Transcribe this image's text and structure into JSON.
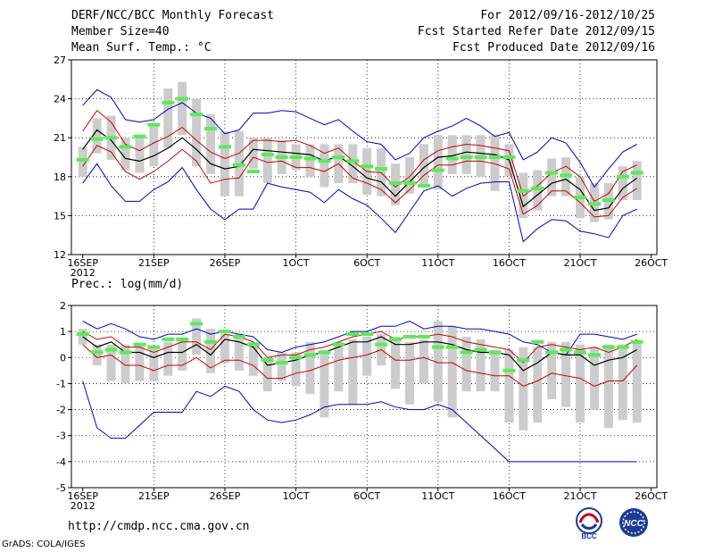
{
  "header": {
    "title": "DERF/NCC/BCC Monthly Forecast",
    "member": "Member Size=40",
    "variable": "Mean Surf. Temp.: °C",
    "period": "For 2012/09/16-2012/10/25",
    "started": "Fcst Started Refer Date 2012/09/15",
    "produced": "Fcst Produced Date 2012/09/16"
  },
  "precip_label": "Prec.: log(mm/d)",
  "footer": {
    "url": "http://cmdp.ncc.cma.gov.cn",
    "credit": "GrADS: COLA/IGES"
  },
  "logos": {
    "left_text": "BCC",
    "right_text": "NCC"
  },
  "colors": {
    "mean": "#000000",
    "spread": "#cc0000",
    "envelope": "#0000cc",
    "box": "#cccccc",
    "marker": "#55ee55"
  },
  "chart_data": [
    {
      "type": "line",
      "title": "Mean Surf. Temp.: °C",
      "ylim": [
        12,
        27
      ],
      "yticks": [
        12,
        15,
        18,
        21,
        24,
        27
      ],
      "xtick_labels": [
        {
          "day": 1,
          "label": "16SEP"
        },
        {
          "day": 6,
          "label": "21SEP"
        },
        {
          "day": 11,
          "label": "26SEP"
        },
        {
          "day": 16,
          "label": "1OCT"
        },
        {
          "day": 21,
          "label": "6OCT"
        },
        {
          "day": 26,
          "label": "11OCT"
        },
        {
          "day": 31,
          "label": "16OCT"
        },
        {
          "day": 36,
          "label": "21OCT"
        },
        {
          "day": 41,
          "label": "26OCT"
        }
      ],
      "year_label": "2012",
      "series": [
        {
          "name": "max",
          "values": [
            23.5,
            24.7,
            24.1,
            22.4,
            22.2,
            22.4,
            23.2,
            23.7,
            22.9,
            22.5,
            21.3,
            21.6,
            22.9,
            22.9,
            23.1,
            23.0,
            22.5,
            22.0,
            22.4,
            21.5,
            20.7,
            20.5,
            19.3,
            19.8,
            21.0,
            21.5,
            21.9,
            22.5,
            21.9,
            21.1,
            21.4,
            19.3,
            19.9,
            21.0,
            20.6,
            19.1,
            17.2,
            18.6,
            19.9,
            20.5
          ]
        },
        {
          "name": "upper",
          "values": [
            21.5,
            23.1,
            22.2,
            20.5,
            20.0,
            20.6,
            21.1,
            21.8,
            20.8,
            19.9,
            19.4,
            19.8,
            20.8,
            20.8,
            20.7,
            20.8,
            20.4,
            19.8,
            20.2,
            19.2,
            18.4,
            18.3,
            17.2,
            18.0,
            19.3,
            20.0,
            20.3,
            20.5,
            20.4,
            20.2,
            20.0,
            16.5,
            17.3,
            18.3,
            18.8,
            18.0,
            16.1,
            16.7,
            18.4,
            18.9
          ]
        },
        {
          "name": "mean",
          "values": [
            20.1,
            21.6,
            20.8,
            19.4,
            19.2,
            19.6,
            20.2,
            21.0,
            20.1,
            19.0,
            18.6,
            18.8,
            20.1,
            20.0,
            19.9,
            19.8,
            19.7,
            19.2,
            19.6,
            18.8,
            17.9,
            17.6,
            16.5,
            17.6,
            18.7,
            19.5,
            19.6,
            19.9,
            19.8,
            19.7,
            19.3,
            15.7,
            16.6,
            17.5,
            17.8,
            17.0,
            15.4,
            15.6,
            17.1,
            17.9
          ]
        },
        {
          "name": "lower",
          "values": [
            18.8,
            20.4,
            19.9,
            18.4,
            17.8,
            18.4,
            19.2,
            20.1,
            19.2,
            17.5,
            17.8,
            17.9,
            19.5,
            19.1,
            19.2,
            18.7,
            18.7,
            18.4,
            19.0,
            17.9,
            17.5,
            17.0,
            16.0,
            17.0,
            18.1,
            18.9,
            18.9,
            19.2,
            19.2,
            19.0,
            18.6,
            15.1,
            15.8,
            16.9,
            16.9,
            16.0,
            14.9,
            15.0,
            16.4,
            17.1
          ]
        },
        {
          "name": "min",
          "values": [
            17.5,
            19.0,
            17.3,
            16.1,
            16.1,
            17.0,
            17.6,
            18.7,
            17.0,
            15.5,
            14.7,
            15.5,
            15.5,
            17.5,
            17.2,
            17.0,
            16.8,
            16.0,
            17.0,
            16.3,
            15.8,
            14.8,
            13.7,
            15.3,
            16.9,
            17.3,
            16.5,
            17.1,
            17.5,
            17.6,
            17.6,
            13.0,
            14.0,
            14.7,
            14.6,
            13.8,
            13.6,
            13.3,
            15.0,
            15.5
          ]
        },
        {
          "name": "box_low",
          "values": [
            18.0,
            19.8,
            19.3,
            18.5,
            18.3,
            18.8,
            20.2,
            21.2,
            18.8,
            18.2,
            16.5,
            16.5,
            18.6,
            17.5,
            18.2,
            18.5,
            18.0,
            17.2,
            17.5,
            17.5,
            16.6,
            16.5,
            15.8,
            16.7,
            17.2,
            17.0,
            18.2,
            18.2,
            18.0,
            16.9,
            18.0,
            14.8,
            15.4,
            16.5,
            16.5,
            14.8,
            14.5,
            14.7,
            16.2,
            16.2
          ]
        },
        {
          "name": "box_high",
          "values": [
            20.3,
            22.5,
            22.7,
            21.0,
            21.0,
            22.1,
            24.8,
            25.3,
            24.0,
            22.8,
            21.5,
            21.5,
            21.0,
            21.0,
            20.8,
            20.5,
            20.5,
            20.5,
            20.5,
            20.5,
            20.2,
            20.2,
            19.0,
            19.5,
            20.5,
            21.2,
            21.2,
            21.2,
            21.2,
            21.2,
            20.5,
            18.3,
            18.5,
            19.4,
            19.5,
            18.0,
            17.5,
            17.5,
            18.8,
            19.2
          ]
        },
        {
          "name": "control",
          "values": [
            19.3,
            20.9,
            21.0,
            20.3,
            21.1,
            22.0,
            23.7,
            24.0,
            22.8,
            21.7,
            20.3,
            18.9,
            18.4,
            19.7,
            19.5,
            19.5,
            19.4,
            19.2,
            19.5,
            19.2,
            18.8,
            18.6,
            17.5,
            17.5,
            17.3,
            18.5,
            19.4,
            19.5,
            19.5,
            19.5,
            19.5,
            16.9,
            17.1,
            18.3,
            18.1,
            16.4,
            15.9,
            16.2,
            18.0,
            18.3
          ]
        }
      ]
    },
    {
      "type": "line",
      "title": "Prec.: log(mm/d)",
      "ylim": [
        -5,
        2
      ],
      "yticks": [
        -5,
        -4,
        -3,
        -2,
        -1,
        0,
        1,
        2
      ],
      "xtick_labels": [
        {
          "day": 1,
          "label": "16SEP"
        },
        {
          "day": 6,
          "label": "21SEP"
        },
        {
          "day": 11,
          "label": "26SEP"
        },
        {
          "day": 16,
          "label": "1OCT"
        },
        {
          "day": 21,
          "label": "6OCT"
        },
        {
          "day": 26,
          "label": "11OCT"
        },
        {
          "day": 31,
          "label": "16OCT"
        },
        {
          "day": 36,
          "label": "21OCT"
        },
        {
          "day": 41,
          "label": "26OCT"
        }
      ],
      "year_label": "2012",
      "series": [
        {
          "name": "max",
          "values": [
            1.4,
            1.1,
            1.3,
            1.1,
            0.8,
            0.7,
            0.9,
            0.9,
            1.1,
            0.9,
            1.0,
            0.9,
            0.8,
            0.3,
            0.2,
            0.4,
            0.5,
            0.6,
            0.8,
            1.0,
            1.0,
            1.2,
            1.2,
            1.4,
            1.1,
            1.2,
            1.2,
            1.1,
            1.1,
            1.0,
            0.9,
            0.6,
            0.5,
            0.2,
            0.1,
            0.9,
            0.9,
            0.8,
            0.7,
            0.9
          ]
        },
        {
          "name": "upper",
          "values": [
            1.0,
            0.7,
            0.8,
            0.4,
            0.4,
            0.2,
            0.4,
            0.6,
            0.6,
            0.3,
            0.9,
            0.8,
            0.6,
            0.0,
            0.1,
            0.1,
            0.3,
            0.4,
            0.6,
            0.8,
            0.9,
            1.0,
            0.7,
            0.8,
            0.8,
            0.9,
            0.8,
            0.6,
            0.5,
            0.4,
            0.3,
            -0.2,
            0.4,
            0.5,
            0.4,
            0.3,
            0.4,
            0.2,
            0.4,
            0.7
          ]
        },
        {
          "name": "mean",
          "values": [
            0.8,
            0.4,
            0.6,
            0.2,
            0.2,
            0.0,
            0.2,
            0.2,
            0.5,
            0.1,
            0.7,
            0.6,
            0.4,
            -0.3,
            -0.2,
            -0.1,
            0.1,
            0.2,
            0.4,
            0.6,
            0.6,
            0.8,
            0.5,
            0.5,
            0.6,
            0.6,
            0.5,
            0.3,
            0.2,
            0.2,
            0.1,
            -0.5,
            -0.2,
            0.2,
            0.1,
            0.1,
            -0.3,
            -0.1,
            0.0,
            0.3
          ]
        },
        {
          "name": "lower",
          "values": [
            0.5,
            0.0,
            0.1,
            -0.3,
            -0.3,
            -0.5,
            -0.3,
            -0.3,
            0.0,
            -0.4,
            -0.1,
            -0.1,
            -0.3,
            -0.8,
            -0.8,
            -0.6,
            -0.5,
            -0.3,
            -0.1,
            0.0,
            0.1,
            0.3,
            -0.1,
            -0.1,
            0.0,
            -0.2,
            -0.2,
            -0.5,
            -0.6,
            -0.7,
            -0.7,
            -1.1,
            -0.9,
            -0.6,
            -0.7,
            -0.8,
            -1.1,
            -0.9,
            -0.9,
            -0.3
          ]
        },
        {
          "name": "min",
          "values": [
            -0.9,
            -2.7,
            -3.1,
            -3.1,
            -2.6,
            -2.1,
            -2.1,
            -2.1,
            -1.3,
            -1.5,
            -1.1,
            -1.3,
            -2.0,
            -2.4,
            -2.5,
            -2.4,
            -2.2,
            -1.9,
            -1.8,
            -1.8,
            -1.8,
            -1.7,
            -1.9,
            -2.0,
            -2.0,
            -1.8,
            -2.0,
            -2.5,
            -3.0,
            -3.5,
            -4.0,
            -4.0,
            -4.0,
            -4.0,
            -4.0,
            -4.0,
            -4.0,
            -4.0,
            -4.0,
            -4.0
          ]
        },
        {
          "name": "box_low",
          "values": [
            0.5,
            -0.3,
            -0.9,
            -1.0,
            -0.9,
            -0.9,
            -0.7,
            -0.5,
            0.1,
            -0.6,
            -0.2,
            -0.5,
            -0.7,
            -1.3,
            -0.9,
            -1.1,
            -1.4,
            -2.3,
            -1.3,
            -1.8,
            -0.7,
            -0.3,
            -1.2,
            -1.8,
            -1.0,
            -1.7,
            -2.3,
            -1.3,
            -1.3,
            -1.3,
            -2.5,
            -2.8,
            -2.5,
            -1.6,
            -1.9,
            -2.5,
            -2.0,
            -2.7,
            -2.4,
            -2.5
          ]
        },
        {
          "name": "box_high",
          "values": [
            1.1,
            0.5,
            0.5,
            0.5,
            0.5,
            0.4,
            0.6,
            0.7,
            1.5,
            1.1,
            0.9,
            0.9,
            0.6,
            0.0,
            0.2,
            0.2,
            0.6,
            0.3,
            0.6,
            0.7,
            0.8,
            0.9,
            0.8,
            0.6,
            0.7,
            1.4,
            1.2,
            0.8,
            0.7,
            0.3,
            0.3,
            0.4,
            0.4,
            0.6,
            0.6,
            0.5,
            0.4,
            0.5,
            0.5,
            0.6
          ]
        },
        {
          "name": "control",
          "values": [
            0.9,
            0.2,
            0.3,
            0.2,
            0.5,
            0.4,
            0.7,
            0.7,
            1.3,
            0.6,
            1.0,
            0.8,
            0.5,
            -0.1,
            -0.2,
            0.0,
            0.1,
            0.2,
            0.5,
            0.9,
            0.9,
            0.5,
            0.7,
            0.8,
            0.8,
            0.4,
            0.4,
            0.2,
            0.3,
            0.2,
            -0.5,
            -0.1,
            0.6,
            0.2,
            0.3,
            0.2,
            0.1,
            0.4,
            0.4,
            0.6
          ]
        }
      ]
    }
  ]
}
